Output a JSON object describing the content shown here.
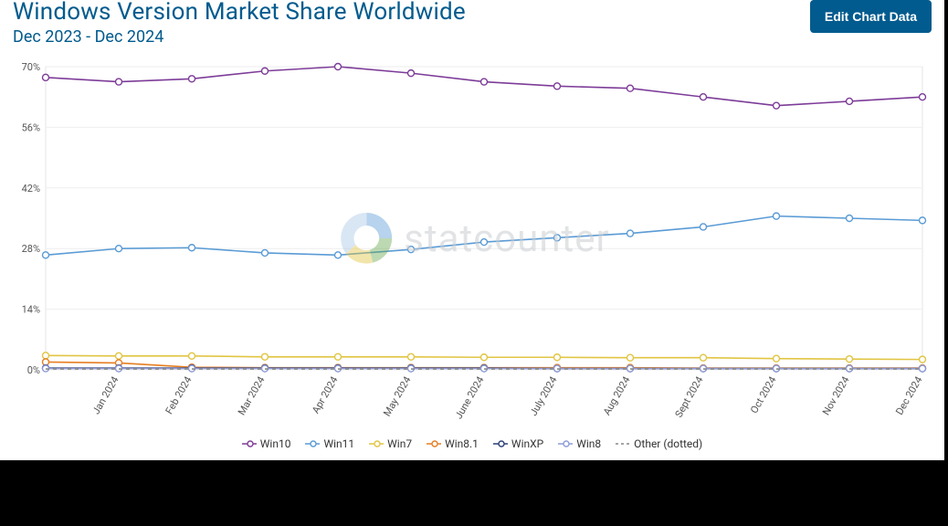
{
  "header": {
    "title": "Windows Version Market Share Worldwide",
    "subtitle": "Dec 2023 - Dec 2024",
    "edit_button": "Edit Chart Data"
  },
  "watermark": {
    "text": "statcounter"
  },
  "chart": {
    "type": "line",
    "background_color": "#ffffff",
    "plot_border_color": "#e6e6e6",
    "grid_color": "#eeeeee",
    "ylim": [
      0,
      70
    ],
    "ytick_step": 14,
    "yticks": [
      0,
      14,
      28,
      42,
      56,
      70
    ],
    "ytick_labels": [
      "0%",
      "14%",
      "28%",
      "42%",
      "56%",
      "70%"
    ],
    "categories": [
      "",
      "Jan 2024",
      "Feb 2024",
      "Mar 2024",
      "Apr 2024",
      "May 2024",
      "June 2024",
      "July 2024",
      "Aug 2024",
      "Sept 2024",
      "Oct 2024",
      "Nov 2024",
      "Dec 2024"
    ],
    "label_fontsize": 11,
    "axis_label_color": "#555555",
    "series": [
      {
        "name": "Win10",
        "color": "#7d3c98",
        "marker": "circle",
        "values": [
          67.5,
          66.5,
          67.2,
          69.0,
          70.0,
          68.5,
          66.5,
          65.5,
          65.0,
          63.0,
          61.0,
          62.0,
          63.0
        ]
      },
      {
        "name": "Win11",
        "color": "#5a9bd5",
        "marker": "circle",
        "values": [
          26.5,
          28.0,
          28.2,
          27.0,
          26.5,
          27.8,
          29.5,
          30.5,
          31.5,
          33.0,
          35.5,
          35.0,
          34.5
        ]
      },
      {
        "name": "Win7",
        "color": "#e1c542",
        "marker": "circle",
        "values": [
          3.3,
          3.2,
          3.2,
          3.0,
          3.0,
          3.0,
          2.9,
          2.9,
          2.8,
          2.8,
          2.6,
          2.5,
          2.4
        ]
      },
      {
        "name": "Win8.1",
        "color": "#e67e22",
        "marker": "circle",
        "values": [
          1.8,
          1.6,
          0.6,
          0.5,
          0.5,
          0.5,
          0.5,
          0.5,
          0.5,
          0.4,
          0.4,
          0.4,
          0.4
        ]
      },
      {
        "name": "WinXP",
        "color": "#2c3e75",
        "marker": "circle",
        "values": [
          0.4,
          0.4,
          0.4,
          0.4,
          0.4,
          0.4,
          0.4,
          0.3,
          0.3,
          0.3,
          0.3,
          0.3,
          0.3
        ]
      },
      {
        "name": "Win8",
        "color": "#8e9bd8",
        "marker": "circle",
        "values": [
          0.3,
          0.3,
          0.3,
          0.3,
          0.3,
          0.3,
          0.3,
          0.3,
          0.3,
          0.3,
          0.3,
          0.3,
          0.3
        ]
      },
      {
        "name": "Other (dotted)",
        "color": "#888888",
        "marker": "line",
        "dashed": true,
        "values": [
          0.2,
          0.2,
          0.2,
          0.2,
          0.2,
          0.2,
          0.2,
          0.2,
          0.2,
          0.2,
          0.2,
          0.2,
          0.2
        ]
      }
    ],
    "marker_radius": 3.5,
    "marker_fill": "#ffffff",
    "line_width": 1.6
  }
}
